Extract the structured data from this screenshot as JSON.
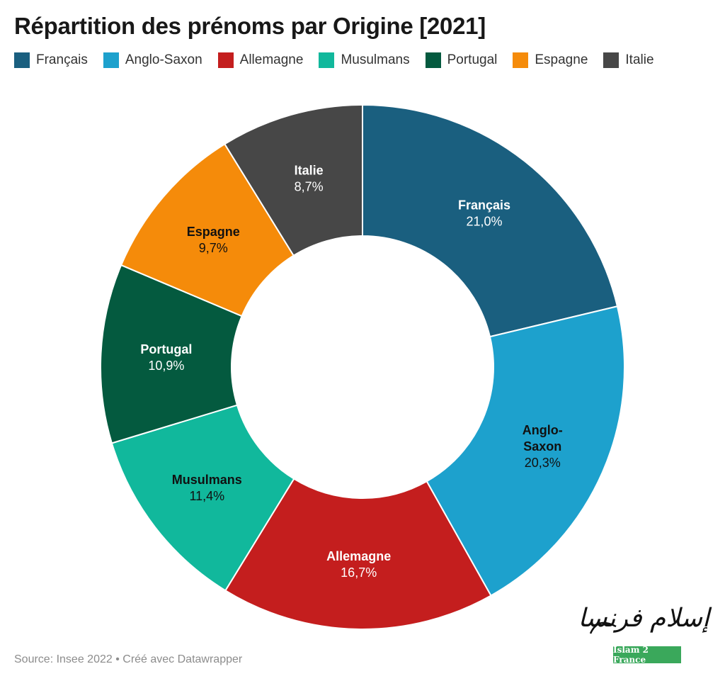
{
  "title": "Répartition des prénoms par Origine [2021]",
  "footer": {
    "source": "Source: Insee 2022 • Créé avec Datawrapper"
  },
  "logo": {
    "arabic_text": "إسلام فرنسا",
    "latin_text": "Islam 2 France",
    "band_color": "#3aa85b"
  },
  "chart_data": {
    "type": "pie",
    "subtype": "donut",
    "title": "Répartition des prénoms par Origine [2021]",
    "legend_position": "top-left",
    "categories": [
      "Français",
      "Anglo-Saxon",
      "Allemagne",
      "Musulmans",
      "Portugal",
      "Espagne",
      "Italie"
    ],
    "values": [
      21.0,
      20.3,
      16.7,
      11.4,
      10.9,
      9.7,
      8.7
    ],
    "value_labels": [
      "21,0%",
      "20,3%",
      "16,7%",
      "11,4%",
      "10,9%",
      "9,7%",
      "8,7%"
    ],
    "colors": [
      "#1a5f7f",
      "#1da1cd",
      "#c41e1e",
      "#11b89c",
      "#045a3f",
      "#f58b0a",
      "#474747"
    ],
    "label_colors": [
      "#ffffff",
      "#111111",
      "#ffffff",
      "#111111",
      "#ffffff",
      "#111111",
      "#ffffff"
    ]
  }
}
